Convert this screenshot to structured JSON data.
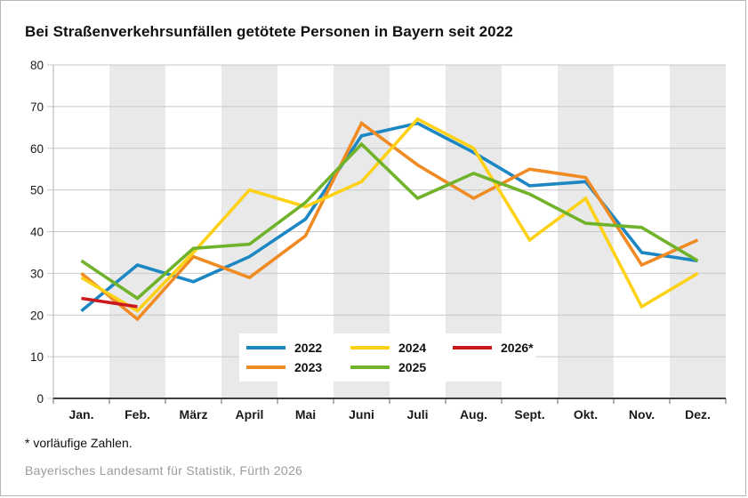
{
  "card": {
    "title": "Bei Straßenverkehrsunfällen getötete Personen in Bayern seit 2022",
    "footnote": "* vorläufige Zahlen.",
    "source": "Bayerisches Landesamt für Statistik, Fürth 2026"
  },
  "chart_data": {
    "type": "line",
    "title": "Bei Straßenverkehrsunfällen getötete Personen in Bayern seit 2022",
    "categories": [
      "Jan.",
      "Feb.",
      "März",
      "April",
      "Mai",
      "Juni",
      "Juli",
      "Aug.",
      "Sept.",
      "Okt.",
      "Nov.",
      "Dez."
    ],
    "xlabel": "",
    "ylabel": "",
    "ylim": [
      0,
      80
    ],
    "yticks": [
      0,
      10,
      20,
      30,
      40,
      50,
      60,
      70,
      80
    ],
    "grid": true,
    "legend_position": "inside-bottom",
    "series": [
      {
        "name": "2022",
        "color": "#1d87c4",
        "values": [
          21,
          32,
          28,
          34,
          43,
          63,
          66,
          59,
          51,
          52,
          35,
          33
        ]
      },
      {
        "name": "2023",
        "color": "#ef8b22",
        "values": [
          30,
          19,
          34,
          29,
          39,
          66,
          56,
          48,
          55,
          53,
          32,
          38
        ]
      },
      {
        "name": "2024",
        "color": "#fcd116",
        "values": [
          29,
          21,
          35,
          50,
          46,
          52,
          67,
          60,
          38,
          48,
          22,
          30
        ]
      },
      {
        "name": "2025",
        "color": "#70b32b",
        "values": [
          33,
          24,
          36,
          37,
          47,
          61,
          48,
          54,
          49,
          42,
          41,
          33
        ]
      },
      {
        "name": "2026*",
        "color": "#ca191d",
        "values": [
          24,
          22,
          null,
          null,
          null,
          null,
          null,
          null,
          null,
          null,
          null,
          null
        ]
      }
    ],
    "band_months": [
      "Feb.",
      "April",
      "Juni",
      "Aug.",
      "Okt.",
      "Dez."
    ],
    "colors": {
      "band": "#e9e9e9",
      "gridline": "#c8c8c8",
      "axis_line": "#3f3f3f",
      "y_axis_line": "#b0b0b0",
      "tick": "#666666",
      "label_text": "#1a1a1a"
    }
  }
}
